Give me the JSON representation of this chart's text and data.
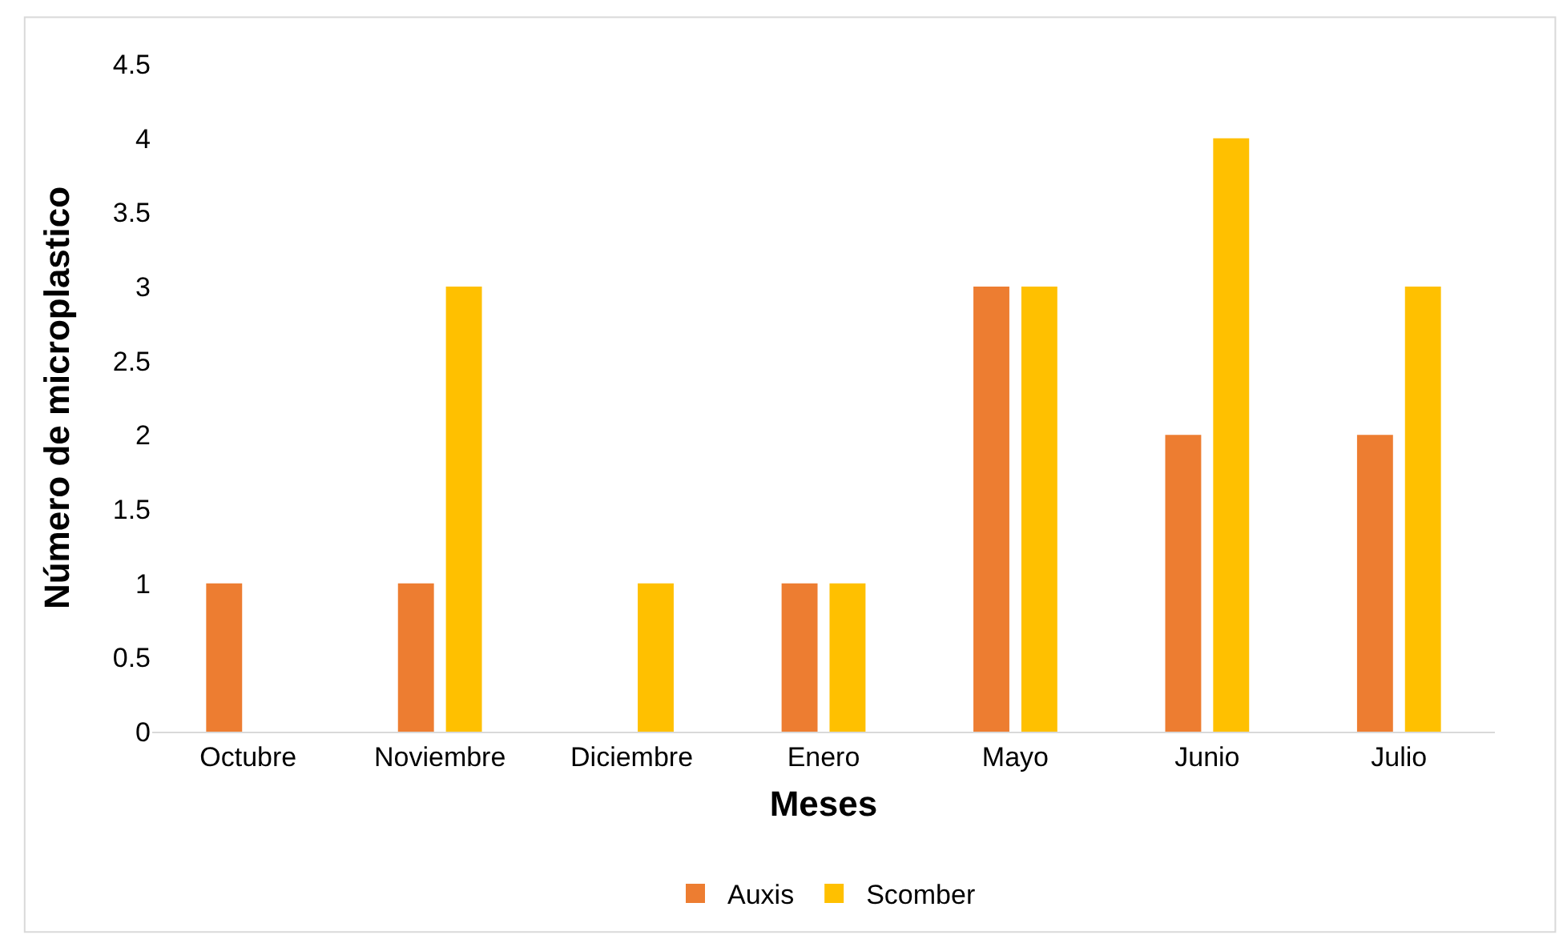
{
  "chart_data": {
    "type": "bar",
    "xlabel": "Meses",
    "ylabel": "Número de microplastico",
    "categories": [
      "Octubre",
      "Noviembre",
      "Diciembre",
      "Enero",
      "Mayo",
      "Junio",
      "Julio"
    ],
    "series": [
      {
        "name": "Auxis",
        "color": "#ed7d31",
        "values": [
          1,
          1,
          0,
          1,
          3,
          2,
          2
        ]
      },
      {
        "name": "Scomber",
        "color": "#ffc000",
        "values": [
          0,
          3,
          1,
          1,
          3,
          4,
          3
        ]
      }
    ],
    "ylim": [
      0,
      4.5
    ],
    "yticks": [
      0,
      0.5,
      1,
      1.5,
      2,
      2.5,
      3,
      3.5,
      4,
      4.5
    ],
    "grid": false,
    "legend": "bottom"
  }
}
